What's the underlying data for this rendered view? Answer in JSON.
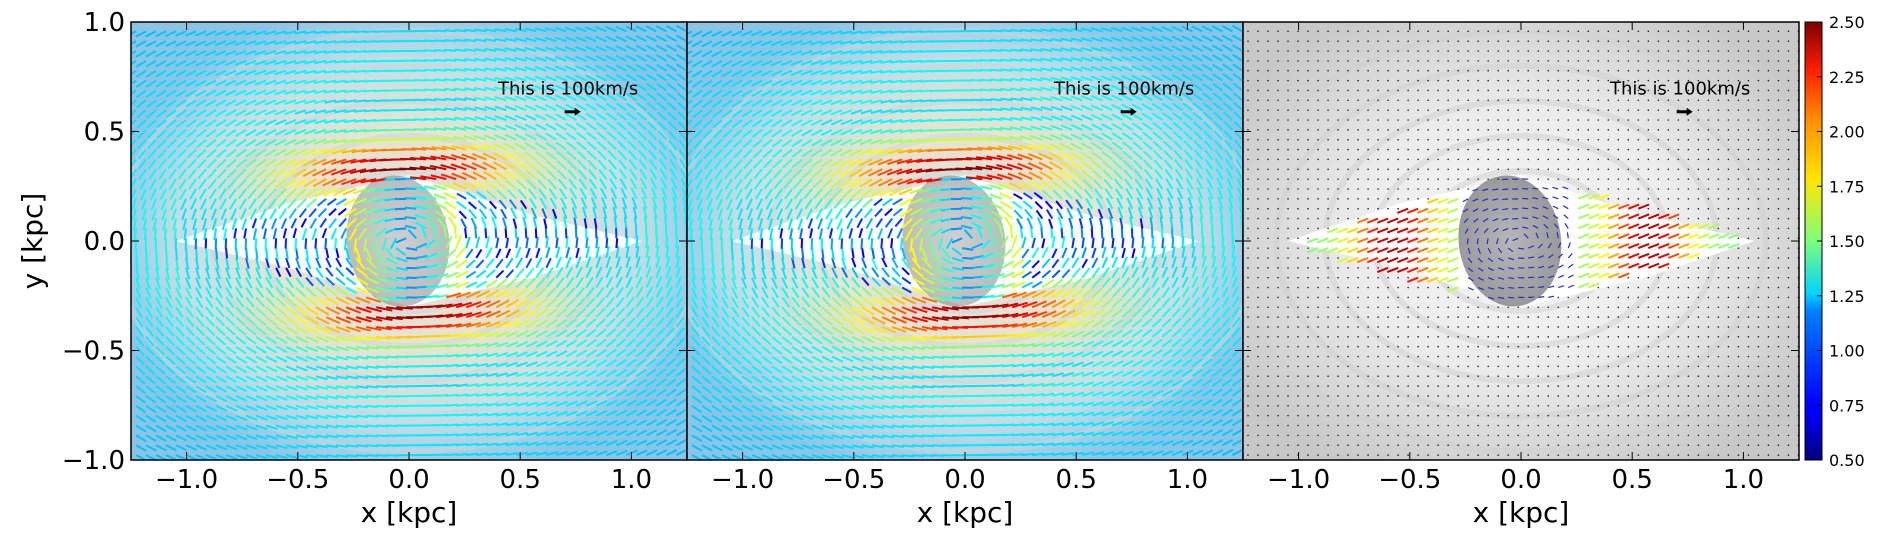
{
  "chart_data": {
    "type": "quiver",
    "panels": [
      {
        "xlabel": "x [kpc]",
        "ylabel": "y [kpc]",
        "background": "color-map",
        "annotation": "This is 100km/s",
        "reference_arrow_kms": 100
      },
      {
        "xlabel": "x [kpc]",
        "ylabel": "",
        "background": "color-map",
        "annotation": "This is 100km/s",
        "reference_arrow_kms": 100
      },
      {
        "xlabel": "x [kpc]",
        "ylabel": "",
        "background": "grayscale",
        "annotation": "This is 100km/s",
        "reference_arrow_kms": 100
      }
    ],
    "xlim": [
      -1.25,
      1.25
    ],
    "ylim": [
      -1.0,
      1.0
    ],
    "xticks": [
      -1.0,
      -0.5,
      0.0,
      0.5,
      1.0
    ],
    "xtick_labels": [
      "−1.0",
      "−0.5",
      "0.0",
      "0.5",
      "1.0"
    ],
    "yticks": [
      1.0,
      0.5,
      0.0,
      -0.5,
      -1.0
    ],
    "ytick_labels": [
      "1.0",
      "0.5",
      "0.0",
      "−0.5",
      "−1.0"
    ],
    "colorbar": {
      "min": 0.5,
      "max": 2.5,
      "colormap": "jet",
      "ticks": [
        2.5,
        2.25,
        2.0,
        1.75,
        1.5,
        1.25,
        1.0,
        0.75,
        0.5
      ],
      "tick_labels": [
        "2.50",
        "2.25",
        "2.00",
        "1.75",
        "1.50",
        "1.25",
        "1.00",
        "0.75",
        "0.50"
      ]
    }
  }
}
